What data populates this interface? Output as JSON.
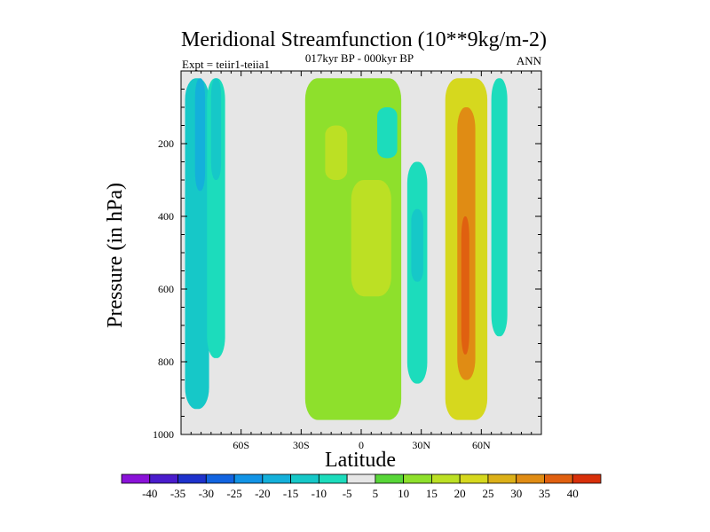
{
  "chart_data": {
    "type": "heatmap",
    "title": "Meridional Streamfunction (10**9kg/m-2)",
    "subtitle": "017kyr BP - 000kyr BP",
    "left_label": "Expt = teiir1-teiia1",
    "right_label": "ANN",
    "xlabel": "Latitude",
    "ylabel": "Pressure (in hPa)",
    "xlim": [
      -90,
      90
    ],
    "ylim": [
      1000,
      0
    ],
    "x_ticks": [
      -60,
      -30,
      0,
      30,
      60
    ],
    "x_tick_labels": [
      "60S",
      "30S",
      "0",
      "30N",
      "60N"
    ],
    "y_ticks": [
      200,
      400,
      600,
      800,
      1000
    ],
    "y_tick_labels": [
      "200",
      "400",
      "600",
      "800",
      "1000"
    ],
    "background_color": "#e6e6e6",
    "colorbar": {
      "labels": [
        "-40",
        "-35",
        "-30",
        "-25",
        "-20",
        "-15",
        "-10",
        "-5",
        "5",
        "10",
        "15",
        "20",
        "25",
        "30",
        "35",
        "40"
      ],
      "colors": [
        "#8a12d8",
        "#4a1ccc",
        "#1e32cc",
        "#1264e0",
        "#1294e6",
        "#14b0da",
        "#16c8c8",
        "#1cdcbc",
        "#e6e6e6",
        "#58d638",
        "#8ee02c",
        "#bce024",
        "#d6d81e",
        "#dcb018",
        "#e08c14",
        "#e06010",
        "#d8300a"
      ]
    },
    "features": [
      {
        "label": "far-south column",
        "level": "-15",
        "lat": [
          -88,
          -76
        ],
        "p": [
          20,
          930
        ]
      },
      {
        "label": "far-south core",
        "level": "-20",
        "lat": [
          -83,
          -78
        ],
        "p": [
          20,
          330
        ]
      },
      {
        "label": "south column 2",
        "level": "-10",
        "lat": [
          -77,
          -68
        ],
        "p": [
          20,
          790
        ]
      },
      {
        "label": "south column 2 core",
        "level": "-15",
        "lat": [
          -75,
          -70
        ],
        "p": [
          20,
          300
        ]
      },
      {
        "label": "tropical cell",
        "level": "10",
        "lat": [
          -28,
          20
        ],
        "p": [
          20,
          960
        ]
      },
      {
        "label": "tropical upper core",
        "level": "15",
        "lat": [
          -18,
          -7
        ],
        "p": [
          150,
          300
        ]
      },
      {
        "label": "tropical lower core",
        "level": "15",
        "lat": [
          -5,
          15
        ],
        "p": [
          300,
          620
        ]
      },
      {
        "label": "upper negative cell",
        "level": "-10",
        "lat": [
          8,
          18
        ],
        "p": [
          100,
          240
        ]
      },
      {
        "label": "mid-lat negative column",
        "level": "-10",
        "lat": [
          23,
          33
        ],
        "p": [
          250,
          860
        ]
      },
      {
        "label": "mid-lat negative core",
        "level": "-15",
        "lat": [
          25,
          31
        ],
        "p": [
          380,
          580
        ]
      },
      {
        "label": "northern column",
        "level": "20",
        "lat": [
          42,
          63
        ],
        "p": [
          20,
          960
        ]
      },
      {
        "label": "northern core",
        "level": "30",
        "lat": [
          48,
          57
        ],
        "p": [
          100,
          850
        ]
      },
      {
        "label": "northern peak",
        "level": "35",
        "lat": [
          50,
          54
        ],
        "p": [
          400,
          780
        ]
      },
      {
        "label": "polar negative column",
        "level": "-10",
        "lat": [
          65,
          73
        ],
        "p": [
          20,
          730
        ]
      }
    ]
  }
}
